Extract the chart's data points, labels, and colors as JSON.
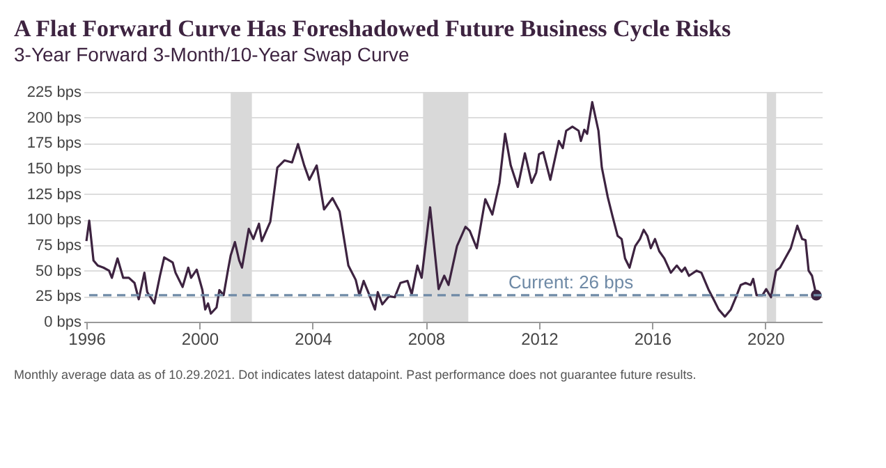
{
  "chart_data": {
    "type": "line",
    "title": "A Flat Forward Curve Has Foreshadowed Future Business Cycle Risks",
    "subtitle": "3-Year Forward 3-Month/10-Year Swap Curve",
    "x": [
      1996.0,
      1996.1,
      1996.25,
      1996.4,
      1996.6,
      1996.8,
      1996.9,
      1997.1,
      1997.3,
      1997.5,
      1997.7,
      1997.85,
      1998.05,
      1998.15,
      1998.4,
      1998.6,
      1998.75,
      1999.05,
      1999.15,
      1999.4,
      1999.6,
      1999.7,
      1999.9,
      2000.1,
      2000.2,
      2000.3,
      2000.4,
      2000.6,
      2000.7,
      2000.85,
      2001.0,
      2001.1,
      2001.25,
      2001.4,
      2001.5,
      2001.74,
      2001.9,
      2002.1,
      2002.2,
      2002.5,
      2002.75,
      2003.0,
      2003.27,
      2003.48,
      2003.7,
      2003.88,
      2004.14,
      2004.4,
      2004.7,
      2004.95,
      2005.26,
      2005.52,
      2005.65,
      2005.8,
      2005.96,
      2006.2,
      2006.3,
      2006.46,
      2006.7,
      2006.9,
      2007.1,
      2007.35,
      2007.5,
      2007.7,
      2007.85,
      2008.15,
      2008.45,
      2008.65,
      2008.8,
      2009.1,
      2009.4,
      2009.55,
      2009.8,
      2010.1,
      2010.35,
      2010.6,
      2010.8,
      2011.0,
      2011.25,
      2011.5,
      2011.74,
      2011.9,
      2012.0,
      2012.15,
      2012.4,
      2012.7,
      2012.84,
      2012.96,
      2013.18,
      2013.4,
      2013.48,
      2013.6,
      2013.7,
      2013.88,
      2014.1,
      2014.22,
      2014.43,
      2014.6,
      2014.78,
      2014.92,
      2015.04,
      2015.2,
      2015.4,
      2015.57,
      2015.7,
      2015.83,
      2015.95,
      2016.1,
      2016.25,
      2016.43,
      2016.66,
      2016.87,
      2017.04,
      2017.16,
      2017.3,
      2017.57,
      2017.74,
      2018.0,
      2018.17,
      2018.35,
      2018.57,
      2018.78,
      2018.96,
      2019.13,
      2019.3,
      2019.48,
      2019.57,
      2019.69,
      2019.9,
      2020.03,
      2020.2,
      2020.38,
      2020.52,
      2020.7,
      2020.9,
      2021.13,
      2021.3,
      2021.42,
      2021.53,
      2021.65,
      2021.8
    ],
    "series": [
      {
        "type": "line",
        "color": "#3d2340",
        "values": [
          79,
          99,
          60,
          55,
          53,
          50,
          43,
          62,
          43,
          43,
          38,
          22,
          48,
          29,
          18,
          45,
          63,
          58,
          48,
          34,
          53,
          43,
          51,
          31,
          12,
          18,
          8,
          14,
          31,
          26,
          50,
          65,
          78,
          60,
          53,
          91,
          81,
          96,
          79,
          98,
          151,
          158,
          156,
          174,
          153,
          139,
          153,
          110,
          121,
          108,
          55,
          41,
          26,
          40,
          29,
          12,
          29,
          17,
          25,
          24,
          38,
          40,
          27,
          55,
          43,
          112,
          32,
          45,
          36,
          74,
          93,
          89,
          72,
          120,
          105,
          136,
          184,
          153,
          132,
          165,
          136,
          146,
          164,
          166,
          139,
          177,
          170,
          187,
          191,
          187,
          177,
          188,
          184,
          215,
          187,
          151,
          122,
          103,
          84,
          81,
          62,
          53,
          74,
          81,
          90,
          84,
          72,
          81,
          69,
          62,
          48,
          55,
          49,
          53,
          45,
          50,
          48,
          31,
          22,
          12,
          5,
          12,
          24,
          36,
          38,
          36,
          42,
          26,
          26,
          32,
          24,
          50,
          53,
          62,
          72,
          94,
          81,
          80,
          50,
          45,
          26
        ]
      },
      {
        "type": "scatter",
        "color": "#3d2340",
        "x": [
          2021.8
        ],
        "values": [
          26
        ]
      }
    ],
    "xlim": [
      1995.9,
      2022.0
    ],
    "xticks": [
      1996,
      2000,
      2004,
      2008,
      2012,
      2016,
      2020
    ],
    "ylim": [
      0,
      225
    ],
    "yticks": [
      {
        "value": 0,
        "label": "0 bps"
      },
      {
        "value": 25,
        "label": "25 bps"
      },
      {
        "value": 50,
        "label": "50 bps"
      },
      {
        "value": 75,
        "label": "75 bps"
      },
      {
        "value": 100,
        "label": "100 bps"
      },
      {
        "value": 125,
        "label": "125 bps"
      },
      {
        "value": 150,
        "label": "150 bps"
      },
      {
        "value": 175,
        "label": "175 bps"
      },
      {
        "value": 200,
        "label": "200 bps"
      },
      {
        "value": 225,
        "label": "225 bps"
      }
    ],
    "grid": "y",
    "bands": [
      {
        "axis": "x",
        "from": 2001.1,
        "to": 2001.85,
        "color": "#d9d9d9"
      },
      {
        "axis": "x",
        "from": 2007.9,
        "to": 2009.5,
        "color": "#d9d9d9"
      },
      {
        "axis": "x",
        "from": 2020.05,
        "to": 2020.38,
        "color": "#d9d9d9"
      }
    ],
    "ref_lines": [
      {
        "axis": "y",
        "value": 26,
        "label": "Current: 26 bps",
        "color": "#6f8aa6",
        "line_style": "dashed"
      }
    ],
    "annotations": [
      "Monthly average data as of 10.29.2021. Dot indicates latest datapoint. Past performance does not guarantee future results."
    ]
  }
}
